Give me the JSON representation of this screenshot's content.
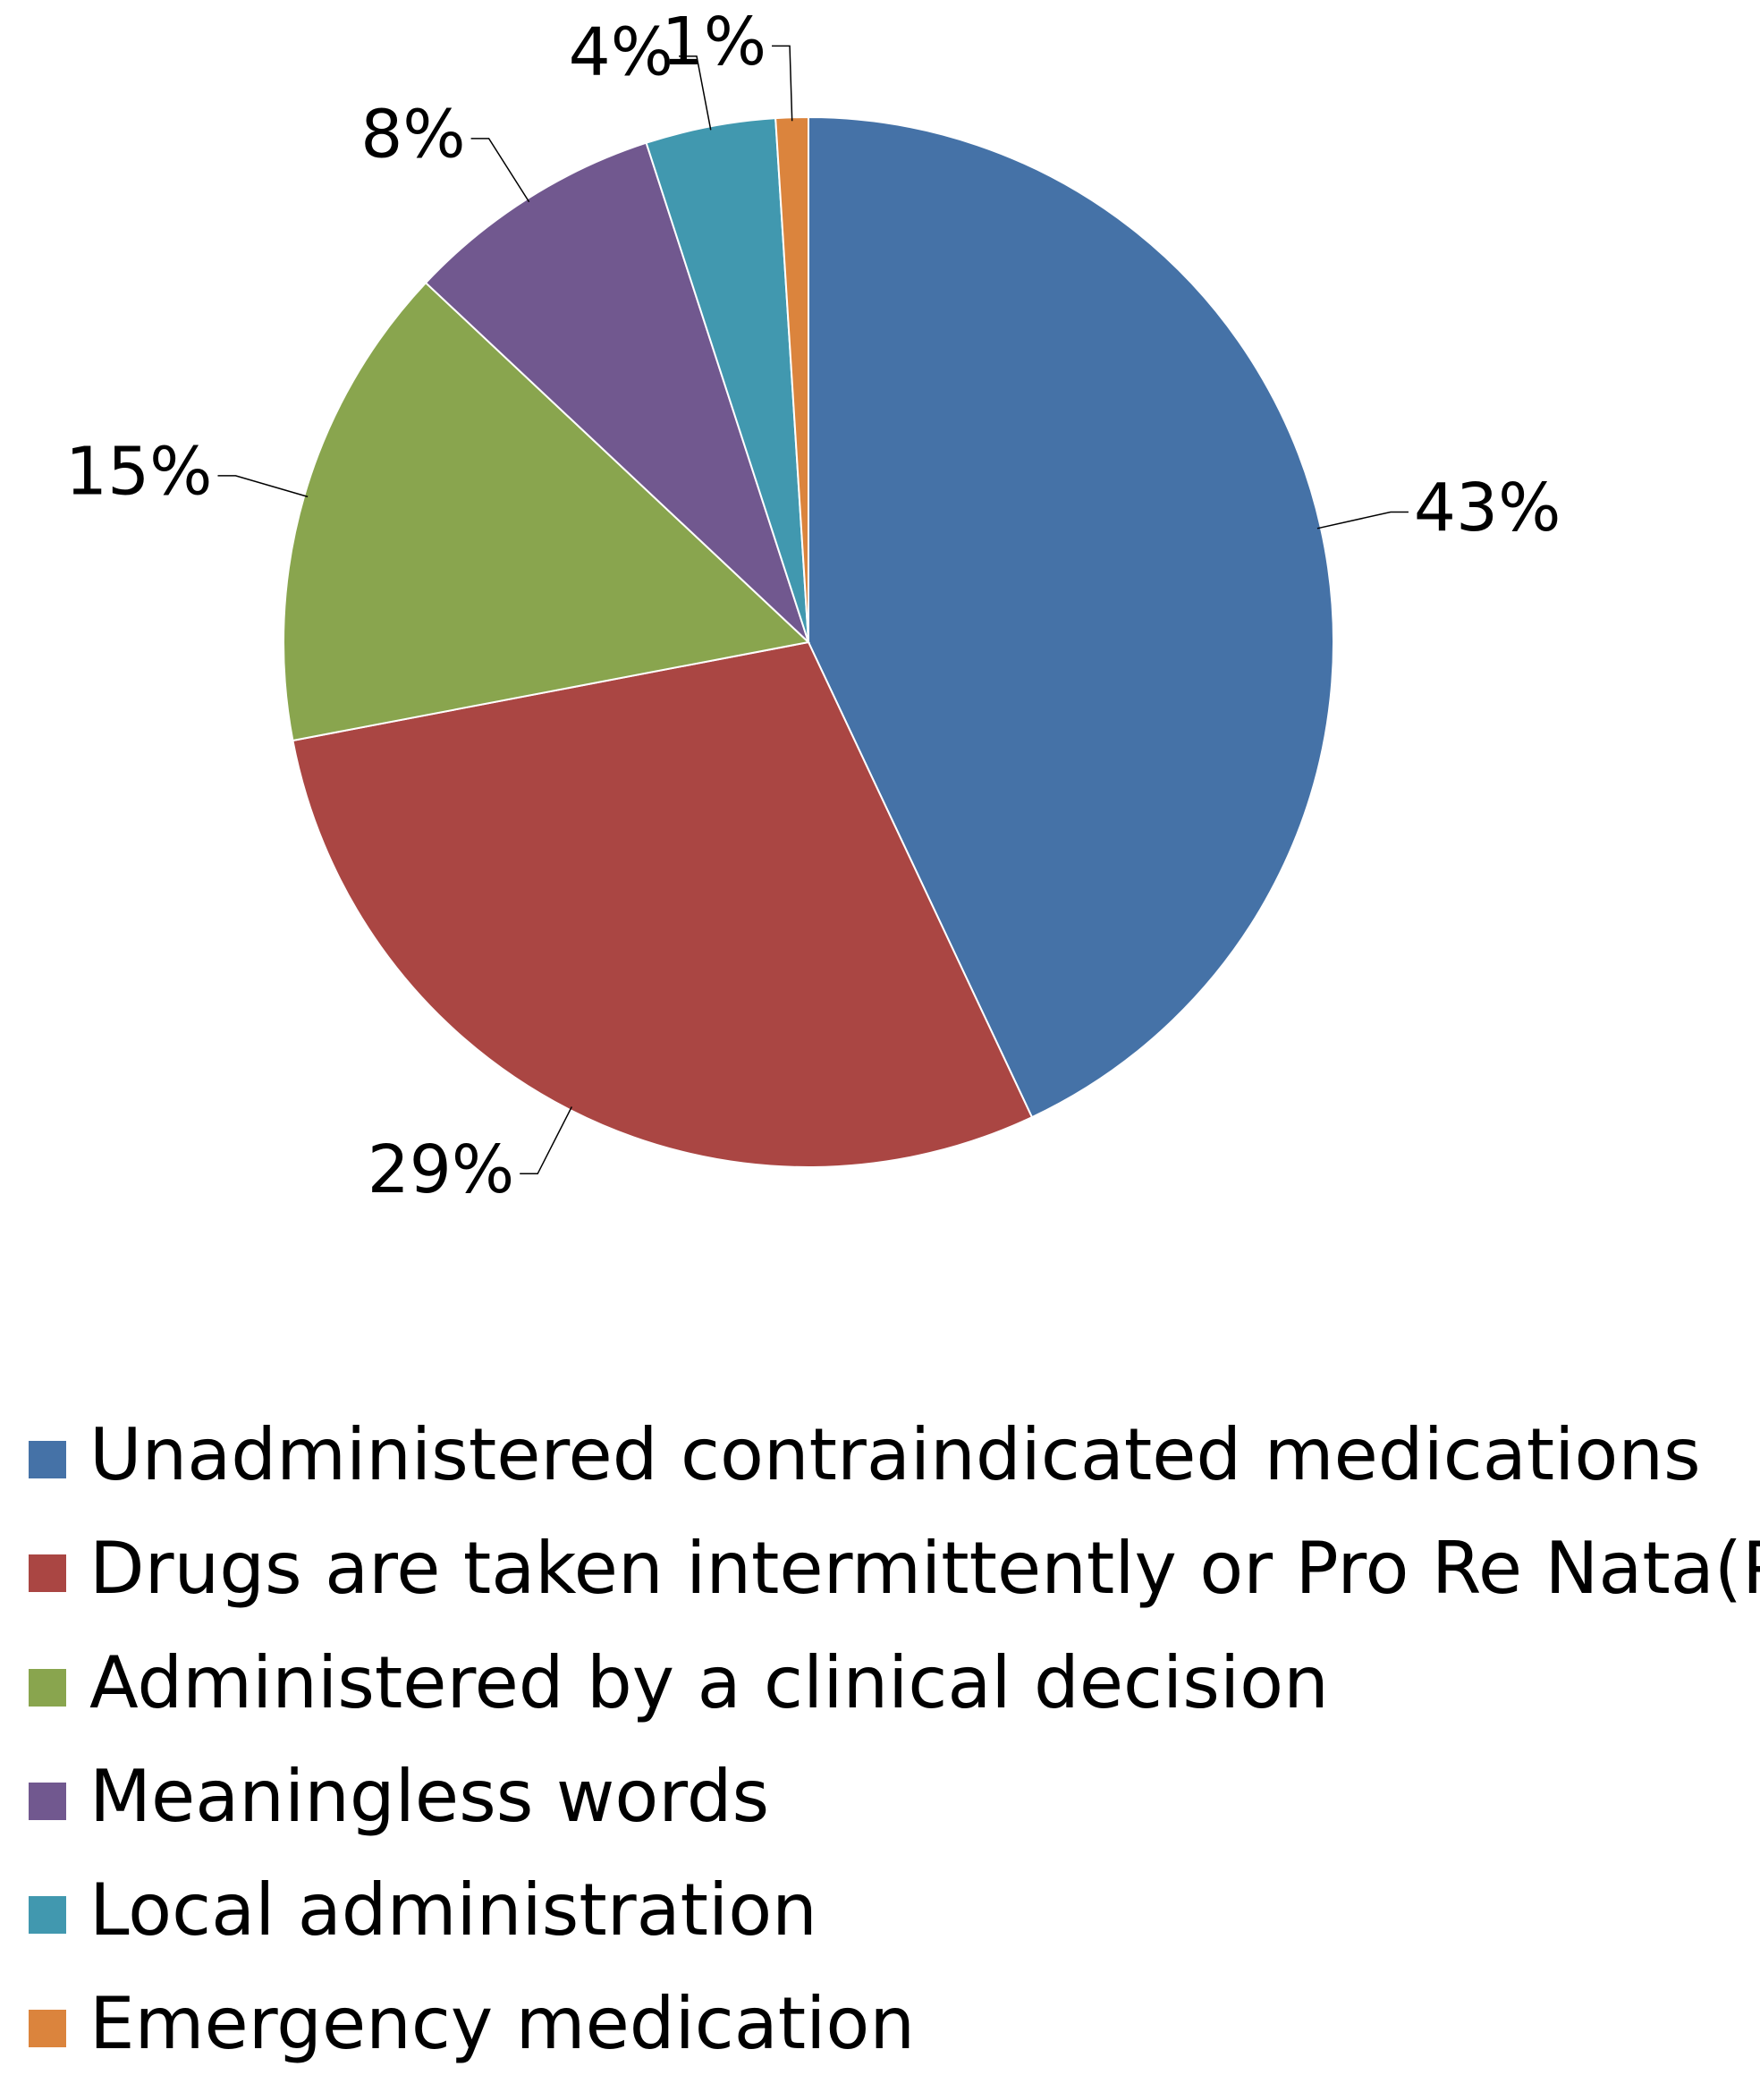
{
  "chart_data": {
    "type": "pie",
    "categories": [
      "Unadministered contraindicated medications",
      "Drugs are taken intermittently or Pro Re Nata(PRN)",
      "Administered by a clinical decision",
      "Meaningless words",
      "Local administration",
      "Emergency medication"
    ],
    "values": [
      43,
      29,
      15,
      8,
      4,
      1
    ],
    "value_labels": [
      "43%",
      "29%",
      "15%",
      "8%",
      "4%",
      "1%"
    ],
    "colors": [
      "#4572a7",
      "#aa4643",
      "#89a54e",
      "#71588f",
      "#4198af",
      "#db843d"
    ],
    "legend": "bottom"
  }
}
